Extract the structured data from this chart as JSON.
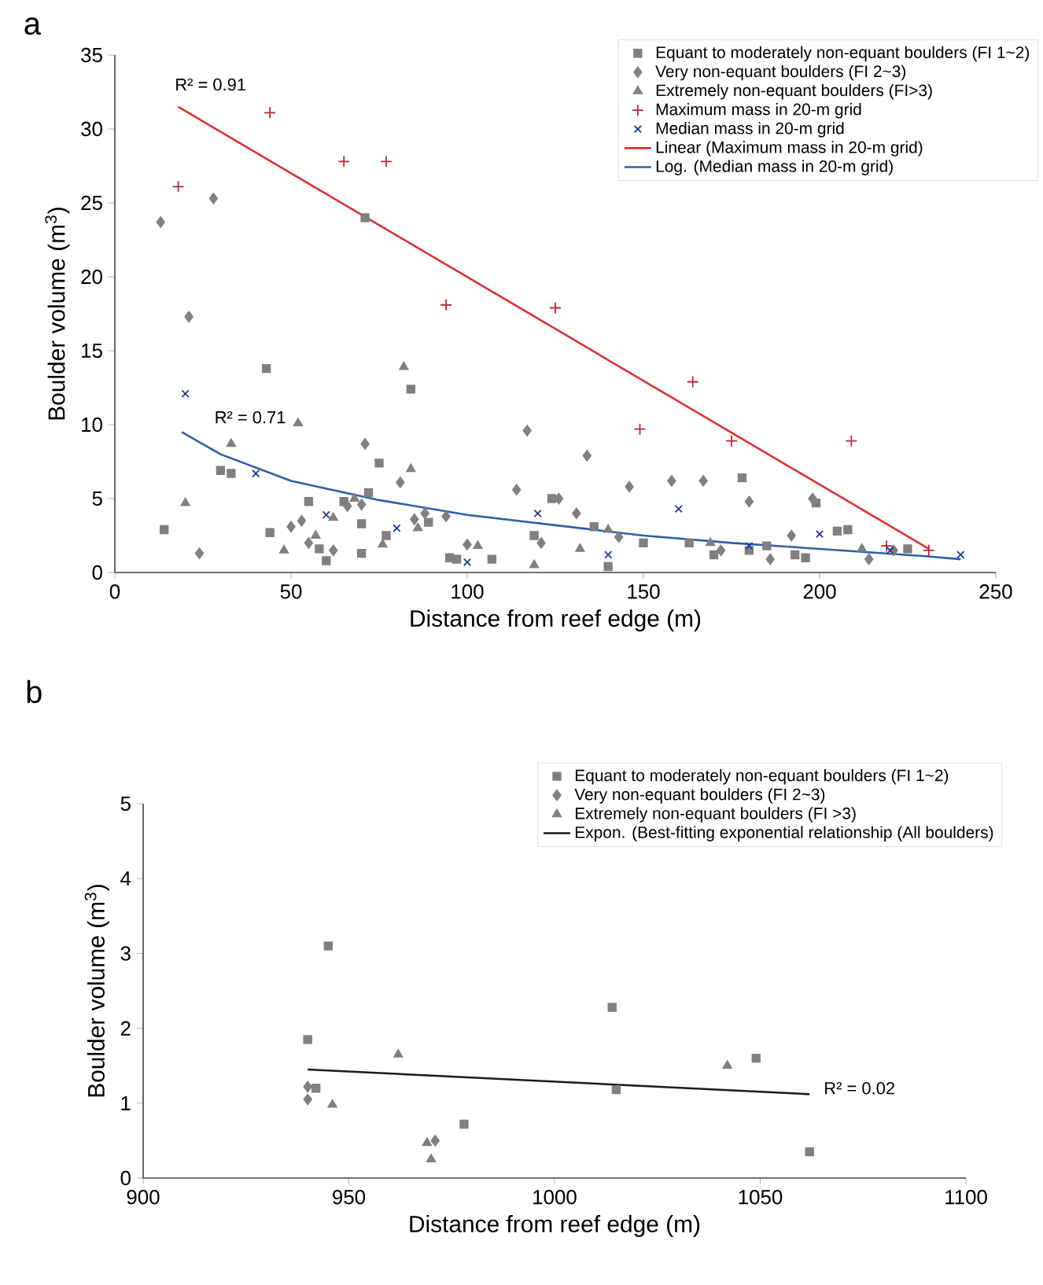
{
  "chart_data": [
    {
      "type": "scatter",
      "title": "a",
      "xlabel": "Distance from reef edge (m)",
      "ylabel": "Boulder volume (m$^{3}$)",
      "xlim": [
        0,
        250
      ],
      "xticks": [
        0,
        50,
        100,
        150,
        200,
        250
      ],
      "ylim": [
        0,
        35
      ],
      "yticks": [
        0,
        5,
        10,
        15,
        20,
        25,
        30,
        35
      ],
      "legend": "top right",
      "annotations": [
        "R² = 0.91",
        "R² = 0.71"
      ],
      "series": [
        {
          "name": "Equant to moderately non-equant boulders (FI 1~2)",
          "color": "#808080",
          "marker": "square",
          "x": [
            14,
            43,
            30,
            33,
            44,
            55,
            58,
            60,
            65,
            70,
            71,
            72,
            75,
            77,
            84,
            70,
            89,
            95,
            97,
            107,
            119,
            124,
            136,
            140,
            150,
            163,
            170,
            178,
            180,
            185,
            193,
            196,
            199,
            205,
            208,
            225
          ],
          "values": [
            2.9,
            13.8,
            6.9,
            6.7,
            2.7,
            4.8,
            1.6,
            0.8,
            4.8,
            1.3,
            24,
            5.4,
            7.4,
            2.5,
            12.4,
            3.3,
            3.4,
            1,
            0.9,
            0.9,
            2.5,
            5,
            3.1,
            0.4,
            2,
            2,
            1.2,
            6.4,
            1.5,
            1.8,
            1.2,
            1,
            4.7,
            2.8,
            2.9,
            1.6
          ]
        },
        {
          "name": "Very non-equant boulders (FI 2~3)",
          "color": "#808080",
          "marker": "diamond",
          "x": [
            13,
            21,
            28,
            24,
            50,
            53,
            55,
            62,
            66,
            71,
            70,
            81,
            85,
            88,
            94,
            100,
            114,
            117,
            121,
            126,
            131,
            134,
            143,
            146,
            158,
            167,
            172,
            180,
            186,
            192,
            198,
            214,
            221
          ],
          "values": [
            23.7,
            17.3,
            25.3,
            1.3,
            3.1,
            3.5,
            2,
            1.5,
            4.5,
            8.7,
            4.6,
            6.1,
            3.6,
            4,
            3.8,
            1.9,
            5.6,
            9.6,
            2,
            5,
            4,
            7.9,
            2.4,
            5.8,
            6.2,
            6.2,
            1.5,
            4.8,
            0.9,
            2.5,
            5,
            0.9,
            1.5
          ]
        },
        {
          "name": "Extremely non-equant boulders (FI>3)",
          "color": "#808080",
          "marker": "triangle",
          "x": [
            20,
            33,
            48,
            52,
            57,
            62,
            68,
            82,
            84,
            76,
            86,
            103,
            119,
            132,
            140,
            169,
            212
          ],
          "values": [
            4.7,
            8.7,
            1.5,
            10.1,
            2.5,
            3.7,
            5,
            13.9,
            7,
            1.9,
            3,
            1.8,
            0.5,
            1.6,
            2.9,
            2,
            1.6
          ]
        },
        {
          "name": "Maximum mass in 20-m grid",
          "color": "#c0272d",
          "marker": "plus",
          "x": [
            18,
            44,
            65,
            77,
            94,
            125,
            149,
            164,
            175,
            209,
            219,
            231
          ],
          "values": [
            26.1,
            31.1,
            27.8,
            27.8,
            18.1,
            17.9,
            9.7,
            12.9,
            8.9,
            8.9,
            1.8,
            1.5
          ]
        },
        {
          "name": "Median mass in 20-m grid",
          "color": "#1f3a93",
          "marker": "cross",
          "x": [
            20,
            40,
            60,
            80,
            100,
            120,
            140,
            160,
            180,
            200,
            220,
            240
          ],
          "values": [
            12.1,
            6.7,
            3.9,
            3,
            0.7,
            4,
            1.2,
            4.3,
            1.8,
            2.6,
            1.5,
            1.2
          ]
        },
        {
          "name": "Linear (Maximum mass in 20-m grid)",
          "type": "line",
          "color": "#e03030",
          "marker": "none",
          "x": [
            18,
            231
          ],
          "values": [
            31.5,
            1.6
          ]
        },
        {
          "name": "Log. (Median mass in 20-m grid)",
          "type": "line",
          "color": "#2e5fa8",
          "marker": "none",
          "x": [
            19,
            30,
            50,
            75,
            100,
            125,
            150,
            175,
            200,
            230,
            240
          ],
          "values": [
            9.5,
            8,
            6.2,
            4.9,
            3.9,
            3.2,
            2.5,
            2,
            1.6,
            1.1,
            0.9
          ]
        }
      ]
    },
    {
      "type": "scatter",
      "title": "b",
      "xlabel": "Distance from reef edge (m)",
      "ylabel": "Boulder volume (m$^{3}$)",
      "xlim": [
        900,
        1100
      ],
      "xticks": [
        900,
        950,
        1000,
        1050,
        1100
      ],
      "ylim": [
        0,
        5
      ],
      "yticks": [
        0,
        1,
        2,
        3,
        4,
        5
      ],
      "legend": "top right",
      "annotations": [
        "R² = 0.02"
      ],
      "series": [
        {
          "name": "Equant to moderately non-equant boulders (FI 1~2)",
          "color": "#808080",
          "marker": "square",
          "x": [
            940,
            945,
            942,
            978,
            1014,
            1015,
            1049,
            1062
          ],
          "values": [
            1.85,
            3.1,
            1.2,
            0.72,
            2.28,
            1.18,
            1.6,
            0.35
          ]
        },
        {
          "name": "Very non-equant boulders (FI 2~3)",
          "color": "#808080",
          "marker": "diamond",
          "x": [
            940,
            940,
            971
          ],
          "values": [
            1.22,
            1.05,
            0.5
          ]
        },
        {
          "name": "Extremely non-equant boulders (FI >3)",
          "color": "#808080",
          "marker": "triangle",
          "x": [
            962,
            946,
            969,
            970,
            1042
          ],
          "values": [
            1.65,
            0.98,
            0.47,
            0.25,
            1.5
          ]
        },
        {
          "name": "Expon. (Best-fitting exponential relationship (All boulders)",
          "type": "line",
          "color": "#1a1a1a",
          "marker": "none",
          "x": [
            940,
            1062
          ],
          "values": [
            1.45,
            1.12
          ]
        }
      ]
    }
  ]
}
